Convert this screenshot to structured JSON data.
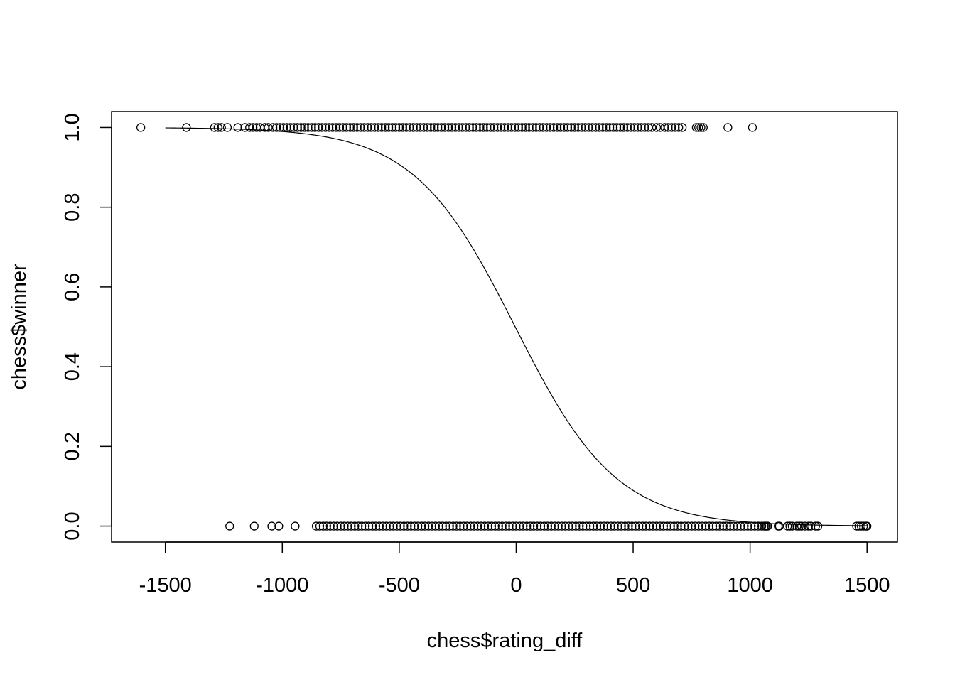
{
  "chart_data": {
    "type": "scatter",
    "xlabel": "chess$rating_diff",
    "ylabel": "chess$winner",
    "xlim": [
      -1730,
      1630
    ],
    "ylim": [
      -0.04,
      1.04
    ],
    "x_ticks": [
      -1500,
      -1000,
      -500,
      0,
      500,
      1000,
      1500
    ],
    "x_tick_labels": [
      "-1500",
      "-1000",
      "-500",
      "0",
      "500",
      "1000",
      "1500"
    ],
    "y_ticks": [
      0.0,
      0.2,
      0.4,
      0.6,
      0.8,
      1.0
    ],
    "y_tick_labels": [
      "0.0",
      "0.2",
      "0.4",
      "0.6",
      "0.8",
      "1.0"
    ],
    "grid": false,
    "legend": "none",
    "series": [
      {
        "y": 1,
        "x": [
          -1605,
          -1410,
          -1290,
          -1275,
          -1260,
          -1235,
          -1190,
          -1160,
          -1140,
          -1125,
          -1110,
          -1095,
          -1075,
          -1060,
          -1040,
          -1025,
          -1010,
          -995,
          -980,
          -965,
          -950,
          -935,
          -920,
          -905,
          -890,
          -875,
          -860,
          -845,
          -830,
          -815,
          -800,
          -785,
          -770,
          -755,
          -740,
          -725,
          -710,
          -695,
          -680,
          -665,
          -650,
          -635,
          -620,
          -605,
          -590,
          -575,
          -560,
          -545,
          -530,
          -515,
          -500,
          -485,
          -470,
          -455,
          -440,
          -425,
          -410,
          -395,
          -380,
          -365,
          -350,
          -335,
          -320,
          -305,
          -290,
          -275,
          -260,
          -245,
          -230,
          -215,
          -200,
          -185,
          -170,
          -155,
          -140,
          -125,
          -110,
          -95,
          -80,
          -65,
          -50,
          -35,
          -20,
          -5,
          10,
          25,
          40,
          55,
          70,
          85,
          100,
          115,
          130,
          145,
          160,
          175,
          190,
          205,
          220,
          235,
          250,
          265,
          280,
          295,
          310,
          325,
          340,
          355,
          370,
          385,
          400,
          415,
          430,
          445,
          460,
          475,
          490,
          505,
          520,
          535,
          550,
          565,
          580,
          600,
          615,
          635,
          650,
          665,
          680,
          695,
          710,
          770,
          780,
          790,
          800,
          905,
          1010
        ]
      },
      {
        "y": 0,
        "x": [
          -1225,
          -1120,
          -1045,
          -1015,
          -945,
          -855,
          -840,
          -825,
          -810,
          -795,
          -780,
          -765,
          -750,
          -735,
          -720,
          -705,
          -690,
          -675,
          -660,
          -645,
          -630,
          -615,
          -600,
          -585,
          -570,
          -555,
          -540,
          -525,
          -510,
          -495,
          -480,
          -465,
          -450,
          -435,
          -420,
          -405,
          -390,
          -375,
          -360,
          -345,
          -330,
          -315,
          -300,
          -285,
          -270,
          -255,
          -240,
          -225,
          -210,
          -195,
          -180,
          -165,
          -150,
          -135,
          -120,
          -105,
          -90,
          -75,
          -60,
          -45,
          -30,
          -15,
          0,
          15,
          30,
          45,
          60,
          75,
          90,
          105,
          120,
          135,
          150,
          165,
          180,
          195,
          210,
          225,
          240,
          255,
          270,
          285,
          300,
          315,
          330,
          345,
          360,
          375,
          390,
          405,
          420,
          435,
          450,
          465,
          480,
          495,
          510,
          525,
          540,
          555,
          570,
          585,
          600,
          615,
          630,
          645,
          660,
          675,
          690,
          705,
          720,
          735,
          750,
          765,
          780,
          795,
          810,
          825,
          840,
          855,
          870,
          885,
          900,
          915,
          930,
          945,
          960,
          975,
          990,
          1005,
          1020,
          1035,
          1050,
          1060,
          1065,
          1070,
          1075,
          1120,
          1125,
          1160,
          1170,
          1180,
          1200,
          1210,
          1220,
          1235,
          1250,
          1260,
          1280,
          1290,
          1455,
          1465,
          1475,
          1485,
          1495,
          1500
        ]
      }
    ],
    "fitted_curve": {
      "model": "logistic",
      "intercept": -0.02,
      "slope": -0.0046,
      "x_from": -1500,
      "x_to": 1500
    }
  }
}
